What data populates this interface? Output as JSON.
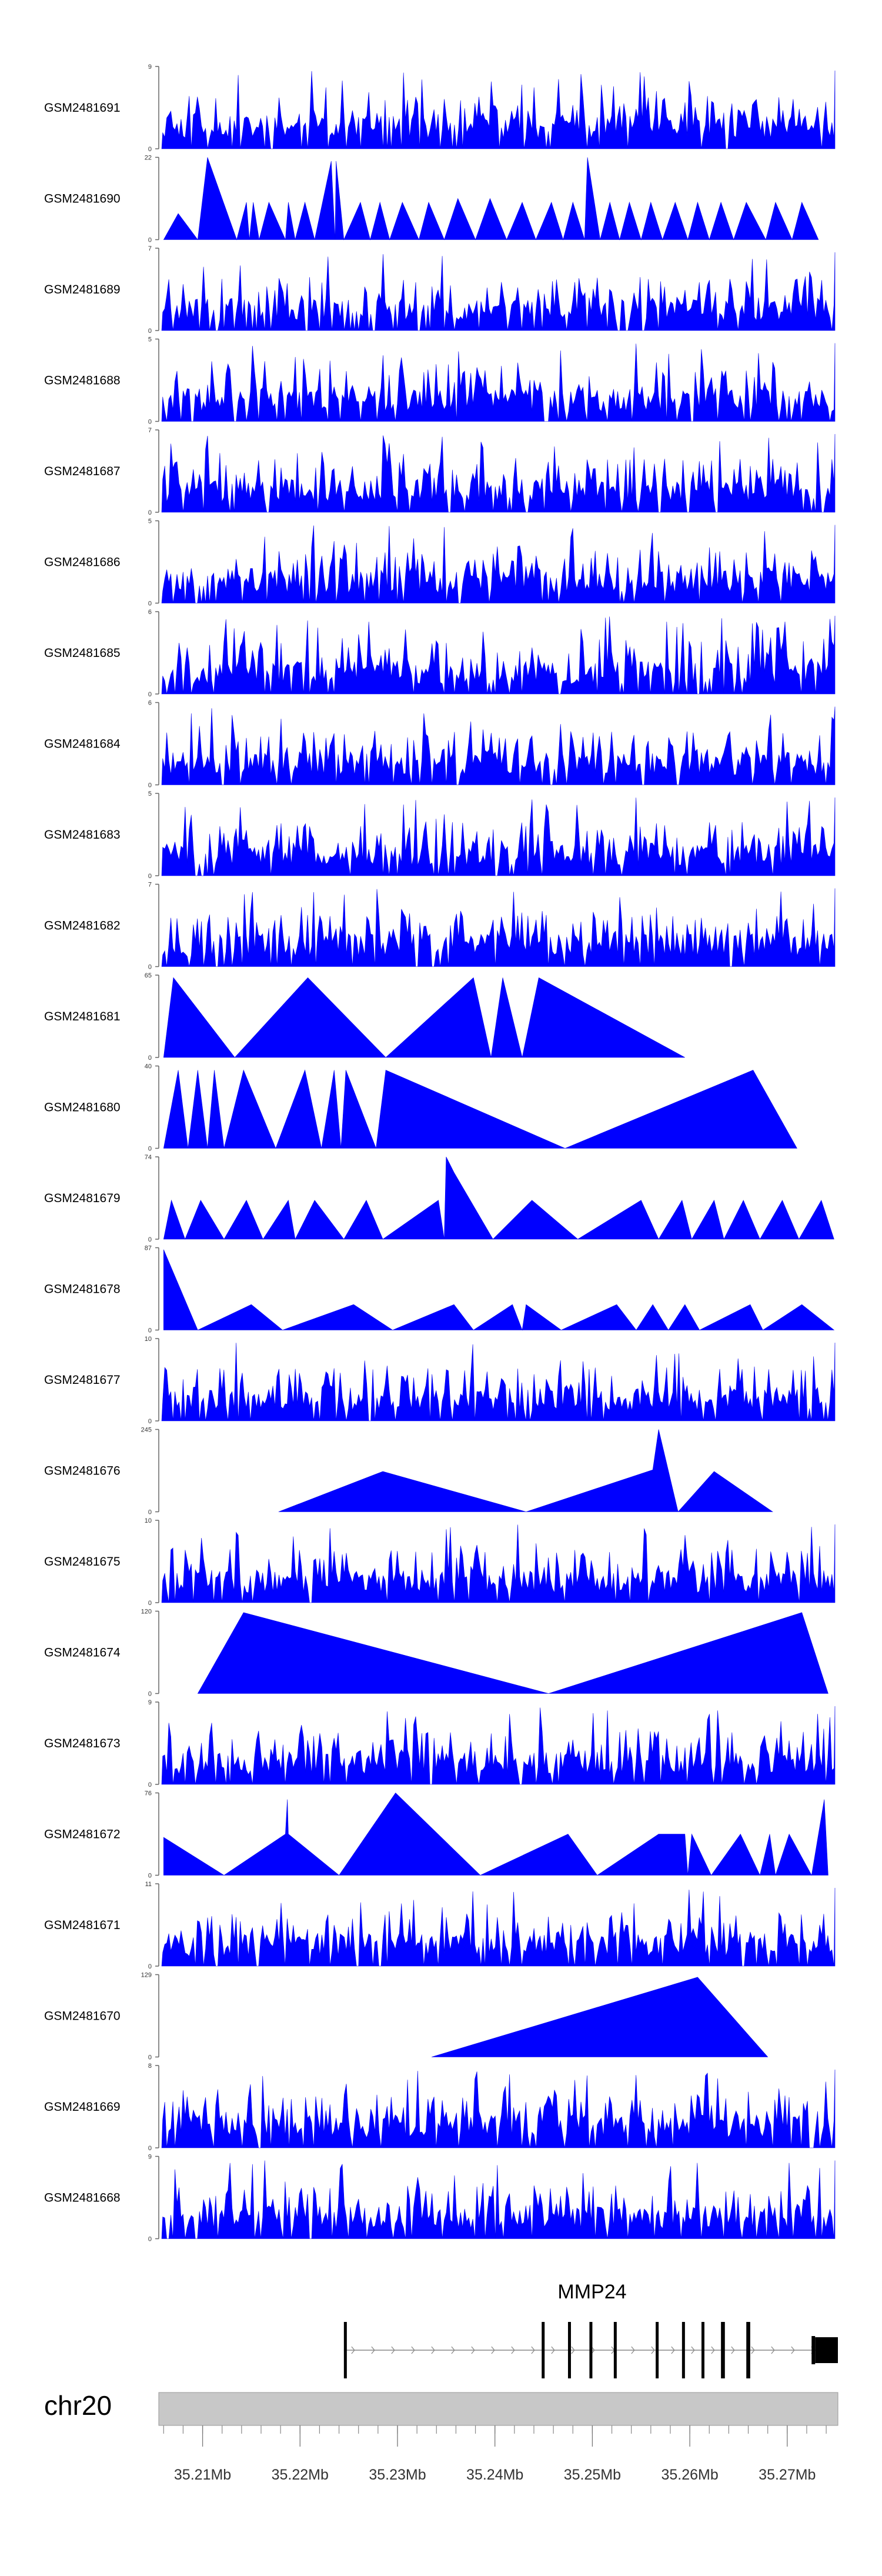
{
  "chart_data": {
    "type": "area",
    "title": "",
    "region_label": "chr20",
    "gene_label": "MMP24",
    "xlim": [
      35.2055,
      35.2752
    ],
    "x_ticks": [
      "35.21Mb",
      "35.22Mb",
      "35.23Mb",
      "35.24Mb",
      "35.25Mb",
      "35.26Mb",
      "35.27Mb"
    ],
    "x_tick_values": [
      35.21,
      35.22,
      35.23,
      35.24,
      35.25,
      35.26,
      35.27
    ],
    "tracks": [
      {
        "name": "GSM2481691",
        "ymax": 9,
        "ymax_label": "9",
        "ymin_label": "0",
        "style": "dense",
        "seed": 11
      },
      {
        "name": "GSM2481690",
        "ymax": 22,
        "ymax_label": "22",
        "ymin_label": "0",
        "style": "peaks",
        "points": [
          [
            35.206,
            0
          ],
          [
            35.2075,
            7
          ],
          [
            35.2095,
            0
          ],
          [
            35.2105,
            22
          ],
          [
            35.2135,
            0
          ],
          [
            35.2145,
            10
          ],
          [
            35.2148,
            0
          ],
          [
            35.2152,
            10
          ],
          [
            35.2158,
            0
          ],
          [
            35.2168,
            10
          ],
          [
            35.2185,
            0
          ],
          [
            35.2188,
            10
          ],
          [
            35.2195,
            0
          ],
          [
            35.2205,
            10
          ],
          [
            35.2215,
            0
          ],
          [
            35.2232,
            21
          ],
          [
            35.2236,
            0
          ],
          [
            35.2237,
            21
          ],
          [
            35.2245,
            0
          ],
          [
            35.2262,
            10
          ],
          [
            35.2272,
            0
          ],
          [
            35.2282,
            10
          ],
          [
            35.2292,
            0
          ],
          [
            35.2305,
            10
          ],
          [
            35.2322,
            0
          ],
          [
            35.2332,
            10
          ],
          [
            35.2348,
            0
          ],
          [
            35.2362,
            11
          ],
          [
            35.238,
            0
          ],
          [
            35.2395,
            11
          ],
          [
            35.2412,
            0
          ],
          [
            35.2428,
            10
          ],
          [
            35.2442,
            0
          ],
          [
            35.2458,
            10
          ],
          [
            35.247,
            0
          ],
          [
            35.248,
            10
          ],
          [
            35.2492,
            0
          ],
          [
            35.2495,
            22
          ],
          [
            35.2508,
            0
          ],
          [
            35.2518,
            10
          ],
          [
            35.2528,
            0
          ],
          [
            35.2538,
            10
          ],
          [
            35.255,
            0
          ],
          [
            35.256,
            10
          ],
          [
            35.2572,
            0
          ],
          [
            35.2585,
            10
          ],
          [
            35.2598,
            0
          ],
          [
            35.2608,
            10
          ],
          [
            35.262,
            0
          ],
          [
            35.2632,
            10
          ],
          [
            35.2645,
            0
          ],
          [
            35.2658,
            10
          ],
          [
            35.2678,
            0
          ],
          [
            35.2688,
            10
          ],
          [
            35.2705,
            0
          ],
          [
            35.2715,
            10
          ],
          [
            35.2732,
            0
          ]
        ]
      },
      {
        "name": "GSM2481689",
        "ymax": 7,
        "ymax_label": "7",
        "ymin_label": "0",
        "style": "dense",
        "seed": 23
      },
      {
        "name": "GSM2481688",
        "ymax": 5,
        "ymax_label": "5",
        "ymin_label": "0",
        "style": "dense",
        "seed": 37
      },
      {
        "name": "GSM2481687",
        "ymax": 7,
        "ymax_label": "7",
        "ymin_label": "0",
        "style": "dense",
        "seed": 41
      },
      {
        "name": "GSM2481686",
        "ymax": 5,
        "ymax_label": "5",
        "ymin_label": "0",
        "style": "dense",
        "seed": 53
      },
      {
        "name": "GSM2481685",
        "ymax": 6,
        "ymax_label": "6",
        "ymin_label": "0",
        "style": "dense",
        "seed": 67
      },
      {
        "name": "GSM2481684",
        "ymax": 6,
        "ymax_label": "6",
        "ymin_label": "0",
        "style": "dense",
        "seed": 71
      },
      {
        "name": "GSM2481683",
        "ymax": 5,
        "ymax_label": "5",
        "ymin_label": "0",
        "style": "dense",
        "seed": 83
      },
      {
        "name": "GSM2481682",
        "ymax": 7,
        "ymax_label": "7",
        "ymin_label": "0",
        "style": "dense",
        "seed": 97
      },
      {
        "name": "GSM2481681",
        "ymax": 65,
        "ymax_label": "65",
        "ymin_label": "0",
        "style": "peaks",
        "points": [
          [
            35.206,
            0
          ],
          [
            35.207,
            63
          ],
          [
            35.2133,
            0
          ],
          [
            35.2208,
            63
          ],
          [
            35.2288,
            0
          ],
          [
            35.2378,
            63
          ],
          [
            35.2396,
            0
          ],
          [
            35.2408,
            63
          ],
          [
            35.2428,
            0
          ],
          [
            35.2445,
            63
          ],
          [
            35.2595,
            0
          ]
        ]
      },
      {
        "name": "GSM2481680",
        "ymax": 40,
        "ymax_label": "40",
        "ymin_label": "0",
        "style": "peaks",
        "points": [
          [
            35.206,
            0
          ],
          [
            35.2075,
            38
          ],
          [
            35.2085,
            0
          ],
          [
            35.2095,
            38
          ],
          [
            35.2105,
            0
          ],
          [
            35.2112,
            38
          ],
          [
            35.2122,
            0
          ],
          [
            35.2142,
            38
          ],
          [
            35.2175,
            0
          ],
          [
            35.2205,
            38
          ],
          [
            35.2222,
            0
          ],
          [
            35.2235,
            38
          ],
          [
            35.2242,
            0
          ],
          [
            35.2247,
            38
          ],
          [
            35.2278,
            0
          ],
          [
            35.2288,
            38
          ],
          [
            35.2472,
            0
          ],
          [
            35.2665,
            38
          ],
          [
            35.271,
            0
          ]
        ]
      },
      {
        "name": "GSM2481679",
        "ymax": 74,
        "ymax_label": "74",
        "ymin_label": "0",
        "style": "peaks",
        "points": [
          [
            35.206,
            0
          ],
          [
            35.2068,
            35
          ],
          [
            35.2082,
            0
          ],
          [
            35.2098,
            35
          ],
          [
            35.2122,
            0
          ],
          [
            35.2145,
            35
          ],
          [
            35.2162,
            0
          ],
          [
            35.2188,
            35
          ],
          [
            35.2195,
            0
          ],
          [
            35.2215,
            35
          ],
          [
            35.2245,
            0
          ],
          [
            35.2268,
            35
          ],
          [
            35.2285,
            0
          ],
          [
            35.2342,
            35
          ],
          [
            35.2348,
            0
          ],
          [
            35.235,
            74
          ],
          [
            35.2358,
            60
          ],
          [
            35.2398,
            0
          ],
          [
            35.2438,
            35
          ],
          [
            35.2485,
            0
          ],
          [
            35.255,
            35
          ],
          [
            35.2568,
            0
          ],
          [
            35.2592,
            35
          ],
          [
            35.2602,
            0
          ],
          [
            35.2625,
            35
          ],
          [
            35.2635,
            0
          ],
          [
            35.2655,
            35
          ],
          [
            35.2672,
            0
          ],
          [
            35.2695,
            35
          ],
          [
            35.2712,
            0
          ],
          [
            35.2735,
            35
          ],
          [
            35.2748,
            0
          ]
        ]
      },
      {
        "name": "GSM2481678",
        "ymax": 87,
        "ymax_label": "87",
        "ymin_label": "0",
        "style": "peaks",
        "points": [
          [
            35.206,
            85
          ],
          [
            35.2095,
            0
          ],
          [
            35.215,
            27
          ],
          [
            35.2182,
            0
          ],
          [
            35.2255,
            27
          ],
          [
            35.2295,
            0
          ],
          [
            35.2358,
            27
          ],
          [
            35.2378,
            0
          ],
          [
            35.2418,
            27
          ],
          [
            35.2428,
            0
          ],
          [
            35.2432,
            27
          ],
          [
            35.2468,
            0
          ],
          [
            35.2525,
            27
          ],
          [
            35.2545,
            0
          ],
          [
            35.2562,
            27
          ],
          [
            35.2578,
            0
          ],
          [
            35.2595,
            27
          ],
          [
            35.261,
            0
          ],
          [
            35.2662,
            27
          ],
          [
            35.2675,
            0
          ],
          [
            35.2715,
            27
          ],
          [
            35.2748,
            0
          ]
        ]
      },
      {
        "name": "GSM2481677",
        "ymax": 10,
        "ymax_label": "10",
        "ymin_label": "0",
        "style": "dense",
        "seed": 101
      },
      {
        "name": "GSM2481676",
        "ymax": 245,
        "ymax_label": "245",
        "ymin_label": "0",
        "style": "peaks",
        "points": [
          [
            35.2178,
            0
          ],
          [
            35.2285,
            120
          ],
          [
            35.2432,
            0
          ],
          [
            35.2562,
            125
          ],
          [
            35.2568,
            245
          ],
          [
            35.2588,
            0
          ],
          [
            35.2625,
            120
          ],
          [
            35.2685,
            0
          ]
        ]
      },
      {
        "name": "GSM2481675",
        "ymax": 10,
        "ymax_label": "10",
        "ymin_label": "0",
        "style": "dense",
        "seed": 113
      },
      {
        "name": "GSM2481674",
        "ymax": 120,
        "ymax_label": "120",
        "ymin_label": "0",
        "style": "peaks",
        "points": [
          [
            35.2095,
            0
          ],
          [
            35.2142,
            118
          ],
          [
            35.2455,
            0
          ],
          [
            35.2715,
            118
          ],
          [
            35.2742,
            0
          ]
        ]
      },
      {
        "name": "GSM2481673",
        "ymax": 9,
        "ymax_label": "9",
        "ymin_label": "0",
        "style": "dense",
        "seed": 127
      },
      {
        "name": "GSM2481672",
        "ymax": 76,
        "ymax_label": "76",
        "ymin_label": "0",
        "style": "peaks",
        "points": [
          [
            35.206,
            35
          ],
          [
            35.2122,
            0
          ],
          [
            35.2185,
            38
          ],
          [
            35.2187,
            70
          ],
          [
            35.2188,
            38
          ],
          [
            35.224,
            0
          ],
          [
            35.2298,
            76
          ],
          [
            35.2385,
            0
          ],
          [
            35.2475,
            38
          ],
          [
            35.2505,
            0
          ],
          [
            35.2568,
            38
          ],
          [
            35.2595,
            38
          ],
          [
            35.2598,
            0
          ],
          [
            35.2602,
            38
          ],
          [
            35.2622,
            0
          ],
          [
            35.2652,
            38
          ],
          [
            35.2672,
            0
          ],
          [
            35.2682,
            38
          ],
          [
            35.2688,
            0
          ],
          [
            35.2702,
            38
          ],
          [
            35.2725,
            0
          ],
          [
            35.2738,
            70
          ],
          [
            35.2742,
            0
          ]
        ]
      },
      {
        "name": "GSM2481671",
        "ymax": 11,
        "ymax_label": "11",
        "ymin_label": "0",
        "style": "dense",
        "seed": 131
      },
      {
        "name": "GSM2481670",
        "ymax": 129,
        "ymax_label": "129",
        "ymin_label": "0",
        "style": "peaks",
        "points": [
          [
            35.2335,
            0
          ],
          [
            35.2608,
            125
          ],
          [
            35.268,
            0
          ]
        ]
      },
      {
        "name": "GSM2481669",
        "ymax": 8,
        "ymax_label": "8",
        "ymin_label": "0",
        "style": "dense",
        "seed": 149
      },
      {
        "name": "GSM2481668",
        "ymax": 9,
        "ymax_label": "9",
        "ymin_label": "0",
        "style": "dense",
        "seed": 157
      }
    ],
    "gene_model": {
      "start": 35.2245,
      "end": 35.2752,
      "exons": [
        [
          35.2245,
          35.2248
        ],
        [
          35.2448,
          35.2451
        ],
        [
          35.2475,
          35.2477
        ],
        [
          35.2497,
          35.2499
        ],
        [
          35.2522,
          35.2525
        ],
        [
          35.2565,
          35.2568
        ],
        [
          35.2592,
          35.2595
        ],
        [
          35.2612,
          35.2615
        ],
        [
          35.2632,
          35.2636
        ],
        [
          35.2658,
          35.2662
        ],
        [
          35.2725,
          35.2752
        ]
      ]
    }
  }
}
